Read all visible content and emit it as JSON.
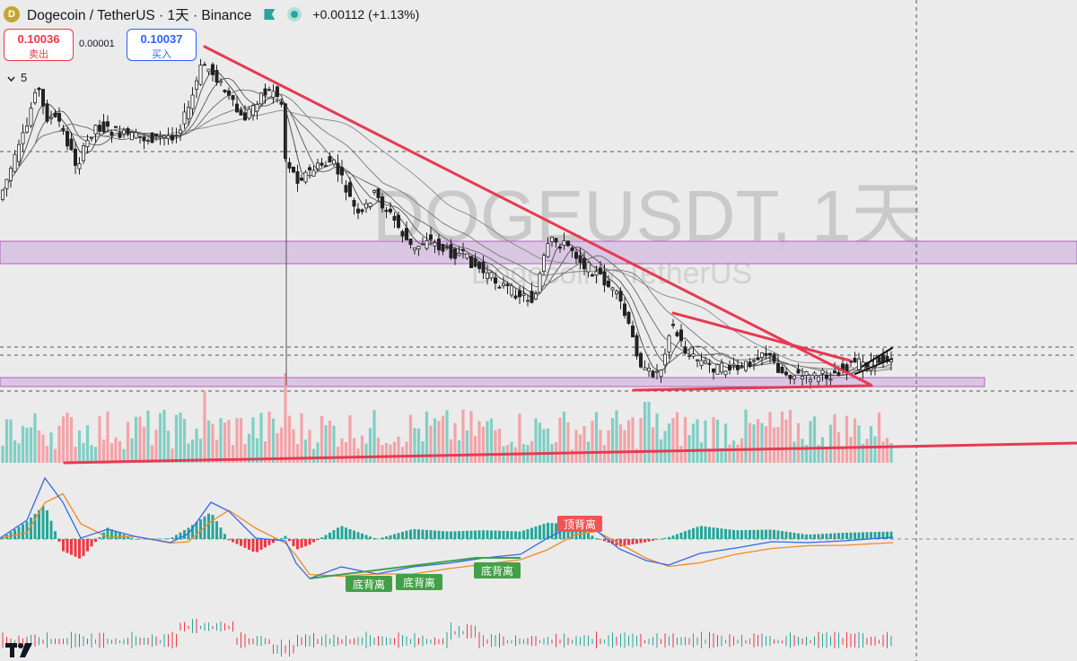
{
  "header": {
    "coin_icon": "D",
    "title": "Dogecoin / TetherUS · 1天 · Binance",
    "change": "+0.00112 (+1.13%)"
  },
  "trade": {
    "sell_price": "0.10036",
    "sell_label": "卖出",
    "spread": "0.00001",
    "buy_price": "0.10037",
    "buy_label": "买入"
  },
  "ma_toggle": {
    "icon": "chevron-down-icon",
    "value": "5"
  },
  "watermark": {
    "symbol": "DOGEUSDT, 1天",
    "name": "Dogecoin / TetherUS"
  },
  "colors": {
    "up": "#26a69a",
    "down": "#f23645",
    "trend": "#e63a52",
    "zone": "#d7c0e2",
    "macd": "#3568e6",
    "signal": "#f08a24",
    "label_green": "#43a047",
    "label_red": "#f05454"
  },
  "chart_data": {
    "type": "candlestick",
    "symbol": "DOGEUSDT",
    "interval": "1天",
    "last_price": 0.10036,
    "change": 0.00112,
    "change_percent": 1.13,
    "moving_average_count": 5,
    "price_close_approx": [
      0.178,
      0.192,
      0.214,
      0.229,
      0.224,
      0.214,
      0.206,
      0.198,
      0.204,
      0.201,
      0.195,
      0.197,
      0.212,
      0.236,
      0.226,
      0.221,
      0.208,
      0.214,
      0.225,
      0.219,
      0.136,
      0.144,
      0.141,
      0.149,
      0.146,
      0.128,
      0.121,
      0.124,
      0.126,
      0.117,
      0.112,
      0.105,
      0.101,
      0.104,
      0.117,
      0.113,
      0.122,
      0.098,
      0.101,
      0.107,
      0.104,
      0.102,
      0.101,
      0.104,
      0.101,
      0.102,
      0.103,
      0.101,
      0.102,
      0.102
    ],
    "horizontal_zones": [
      "upper resistance band",
      "lower support band"
    ],
    "annotations": [
      {
        "text": "底背离",
        "indicator": "MACD"
      },
      {
        "text": "底背离",
        "indicator": "MACD"
      },
      {
        "text": "底背离",
        "indicator": "MACD"
      },
      {
        "text": "顶背离",
        "indicator": "MACD"
      }
    ],
    "indicators": [
      "volume",
      "MACD"
    ]
  }
}
